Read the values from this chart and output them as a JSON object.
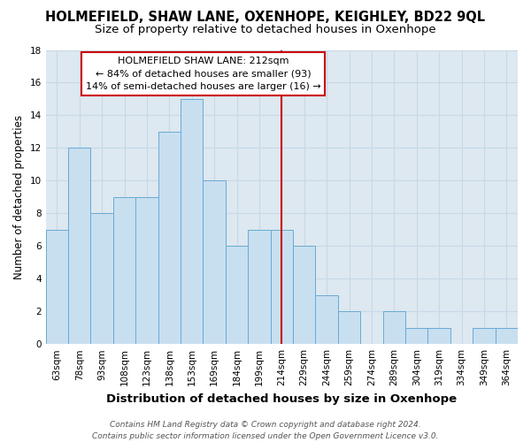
{
  "title": "HOLMEFIELD, SHAW LANE, OXENHOPE, KEIGHLEY, BD22 9QL",
  "subtitle": "Size of property relative to detached houses in Oxenhope",
  "xlabel": "Distribution of detached houses by size in Oxenhope",
  "ylabel": "Number of detached properties",
  "bar_labels": [
    "63sqm",
    "78sqm",
    "93sqm",
    "108sqm",
    "123sqm",
    "138sqm",
    "153sqm",
    "169sqm",
    "184sqm",
    "199sqm",
    "214sqm",
    "229sqm",
    "244sqm",
    "259sqm",
    "274sqm",
    "289sqm",
    "304sqm",
    "319sqm",
    "334sqm",
    "349sqm",
    "364sqm"
  ],
  "bar_values": [
    7,
    12,
    8,
    9,
    9,
    13,
    15,
    10,
    6,
    7,
    7,
    6,
    3,
    2,
    0,
    2,
    1,
    1,
    0,
    1,
    1
  ],
  "bar_color": "#c8dff0",
  "bar_edge_color": "#6aaad4",
  "grid_color": "#c8d8e8",
  "background_color": "#ffffff",
  "plot_bg_color": "#dde8f0",
  "annotation_box_color": "#ffffff",
  "annotation_box_edge": "#cc0000",
  "vline_color": "#cc0000",
  "vline_x_index": 10,
  "annotation_title": "HOLMEFIELD SHAW LANE: 212sqm",
  "annotation_line1": "← 84% of detached houses are smaller (93)",
  "annotation_line2": "14% of semi-detached houses are larger (16) →",
  "ylim": [
    0,
    18
  ],
  "yticks": [
    0,
    2,
    4,
    6,
    8,
    10,
    12,
    14,
    16,
    18
  ],
  "footer_line1": "Contains HM Land Registry data © Crown copyright and database right 2024.",
  "footer_line2": "Contains public sector information licensed under the Open Government Licence v3.0.",
  "title_fontsize": 10.5,
  "subtitle_fontsize": 9.5,
  "xlabel_fontsize": 9.5,
  "ylabel_fontsize": 8.5,
  "tick_fontsize": 7.5,
  "annotation_fontsize": 8,
  "footer_fontsize": 6.5
}
